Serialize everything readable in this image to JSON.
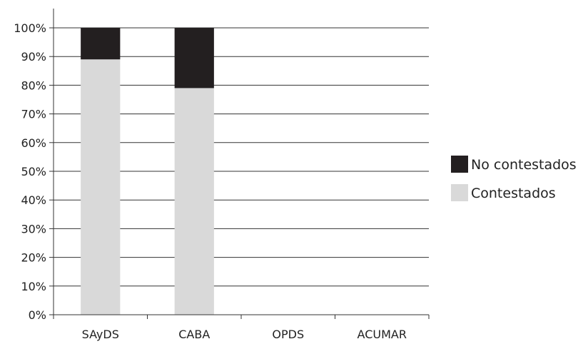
{
  "chart_data": {
    "type": "bar",
    "stacked": true,
    "percent": true,
    "categories": [
      "SAyDS",
      "CABA",
      "OPDS",
      "ACUMAR"
    ],
    "series": [
      {
        "name": "Contestados",
        "values": [
          89,
          79,
          0,
          0
        ],
        "color": "#d9d9d9"
      },
      {
        "name": "No contestados",
        "values": [
          11,
          21,
          0,
          0
        ],
        "color": "#231f20"
      }
    ],
    "ylim": [
      0,
      100
    ],
    "yticks": [
      "0%",
      "10%",
      "20%",
      "30%",
      "40%",
      "50%",
      "60%",
      "70%",
      "80%",
      "90%",
      "100%"
    ],
    "grid": true,
    "legend_position": "right"
  }
}
